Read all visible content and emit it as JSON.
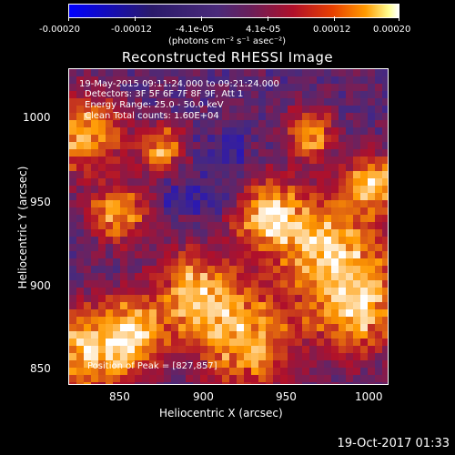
{
  "colorbar": {
    "tick_labels": [
      "-0.00020",
      "-0.00012",
      "-4.1e-05",
      "4.1e-05",
      "0.00012",
      "0.00020"
    ],
    "unit_label": "(photons cm⁻² s⁻¹ asec⁻²)"
  },
  "title": "Reconstructed RHESSI Image",
  "info": {
    "time_range": "19-May-2015 09:11:24.000 to 09:21:24.000",
    "detectors": "Detectors: 3F 5F 6F 7F 8F 9F, Att 1",
    "energy": "Energy Range: 25.0 - 50.0 keV",
    "clean": "Clean    Total counts: 1.60E+04",
    "peak": "Position of Peak = [827,857]"
  },
  "axes": {
    "xlabel": "Heliocentric X (arcsec)",
    "ylabel": "Heliocentric Y (arcsec)",
    "xticks": [
      "850",
      "900",
      "950",
      "1000"
    ],
    "yticks": [
      "1000",
      "950",
      "900",
      "850"
    ]
  },
  "timestamp": "19-Oct-2017 01:33",
  "chart_data": {
    "type": "heatmap",
    "title": "Reconstructed RHESSI Image",
    "xlabel": "Heliocentric X (arcsec)",
    "ylabel": "Heliocentric Y (arcsec)",
    "xlim": [
      820,
      1022
    ],
    "ylim": [
      840,
      1040
    ],
    "colorbar_range": [
      -0.0002,
      0.0002
    ],
    "peak": [
      827,
      857
    ],
    "colormap": [
      "#0000ff",
      "#4a2a7a",
      "#b0102a",
      "#ff9a00",
      "#ffffff"
    ]
  }
}
